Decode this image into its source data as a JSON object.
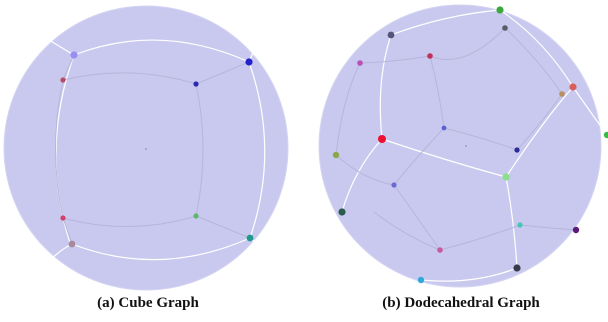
{
  "figure": {
    "panels": [
      {
        "id": "cube",
        "caption": "(a) Cube Graph",
        "sphere_fill": "#c8c8ee",
        "edge_color": "#ffffff",
        "inner_edge_color": "#b8b8dc"
      },
      {
        "id": "dodecahedral",
        "caption": "(b) Dodecahedral Graph",
        "sphere_fill": "#c8c8ee",
        "edge_color": "#ffffff",
        "inner_edge_color": "#b8b8dc"
      }
    ]
  }
}
